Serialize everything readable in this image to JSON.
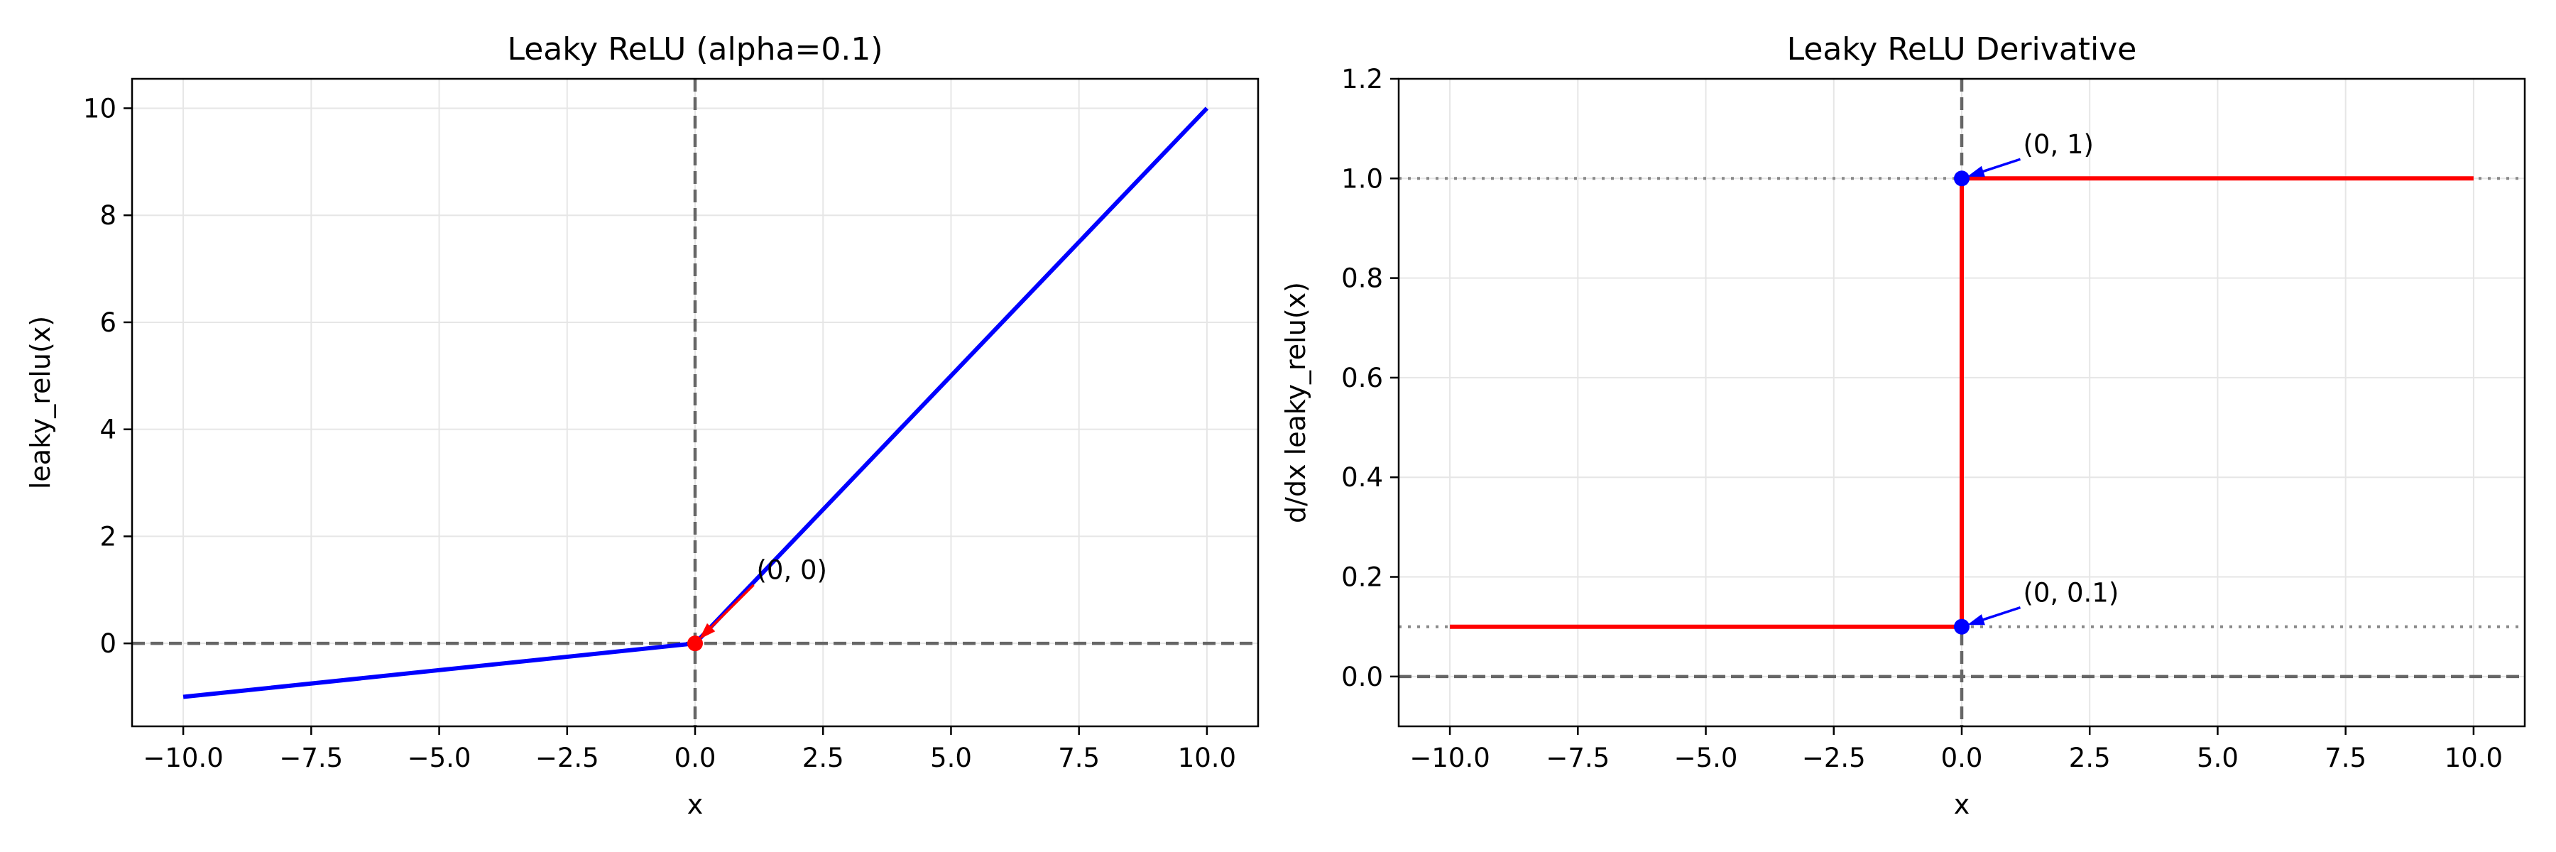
{
  "chart_data": [
    {
      "type": "line",
      "title": "Leaky ReLU (alpha=0.1)",
      "xlabel": "x",
      "ylabel": "leaky_relu(x)",
      "xlim": [
        -11,
        11
      ],
      "ylim": [
        -1.55,
        10.55
      ],
      "xticks": [
        -10,
        -7.5,
        -5,
        -2.5,
        0,
        2.5,
        5,
        7.5,
        10
      ],
      "xtick_labels": [
        "−10.0",
        "−7.5",
        "−5.0",
        "−2.5",
        "0.0",
        "2.5",
        "5.0",
        "7.5",
        "10.0"
      ],
      "yticks": [
        0,
        2,
        4,
        6,
        8,
        10
      ],
      "ytick_labels": [
        "0",
        "2",
        "4",
        "6",
        "8",
        "10"
      ],
      "grid": true,
      "series": [
        {
          "x": [
            -10,
            0,
            10
          ],
          "y": [
            -1,
            0,
            10
          ],
          "color": "#0000ff"
        }
      ],
      "reference_lines": [
        {
          "orientation": "horizontal",
          "value": 0,
          "style": "dashed",
          "color": "#666666"
        },
        {
          "orientation": "vertical",
          "value": 0,
          "style": "dashed",
          "color": "#666666"
        }
      ],
      "points": [
        {
          "x": 0,
          "y": 0,
          "color": "#ff0000"
        }
      ],
      "annotations": [
        {
          "text": "(0, 0)",
          "x": 0,
          "y": 0,
          "text_x": 1.2,
          "text_y": 1.2,
          "color": "#ff0000"
        }
      ]
    },
    {
      "type": "line",
      "title": "Leaky ReLU Derivative",
      "xlabel": "x",
      "ylabel": "d/dx leaky_relu(x)",
      "xlim": [
        -11,
        11
      ],
      "ylim": [
        -0.1,
        1.2
      ],
      "xticks": [
        -10,
        -7.5,
        -5,
        -2.5,
        0,
        2.5,
        5,
        7.5,
        10
      ],
      "xtick_labels": [
        "−10.0",
        "−7.5",
        "−5.0",
        "−2.5",
        "0.0",
        "2.5",
        "5.0",
        "7.5",
        "10.0"
      ],
      "yticks": [
        0,
        0.2,
        0.4,
        0.6,
        0.8,
        1.0,
        1.2
      ],
      "ytick_labels": [
        "0.0",
        "0.2",
        "0.4",
        "0.6",
        "0.8",
        "1.0",
        "1.2"
      ],
      "grid": true,
      "series": [
        {
          "x": [
            -10,
            0,
            0,
            10
          ],
          "y": [
            0.1,
            0.1,
            1,
            1
          ],
          "color": "#ff0000"
        }
      ],
      "reference_lines": [
        {
          "orientation": "horizontal",
          "value": 0,
          "style": "dashed",
          "color": "#666666"
        },
        {
          "orientation": "vertical",
          "value": 0,
          "style": "dashed",
          "color": "#666666"
        },
        {
          "orientation": "horizontal",
          "value": 1,
          "style": "dotted",
          "color": "#888888"
        },
        {
          "orientation": "horizontal",
          "value": 0.1,
          "style": "dotted",
          "color": "#888888"
        }
      ],
      "points": [
        {
          "x": 0,
          "y": 1,
          "color": "#0000ff"
        },
        {
          "x": 0,
          "y": 0.1,
          "color": "#0000ff"
        }
      ],
      "annotations": [
        {
          "text": "(0, 1)",
          "x": 0,
          "y": 1,
          "text_x": 1.2,
          "text_y": 1.05,
          "color": "#0000ff"
        },
        {
          "text": "(0, 0.1)",
          "x": 0,
          "y": 0.1,
          "text_x": 1.2,
          "text_y": 0.15,
          "color": "#0000ff"
        }
      ]
    }
  ]
}
